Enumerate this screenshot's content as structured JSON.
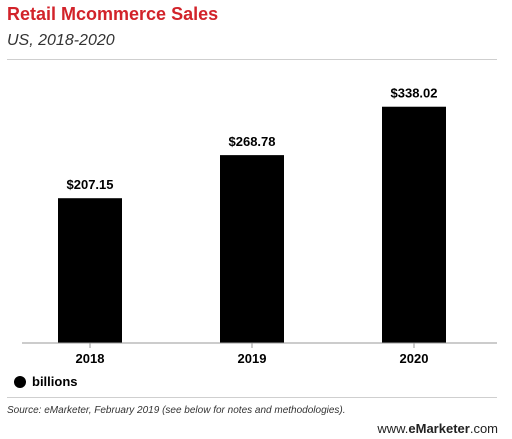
{
  "header": {
    "title": "Retail Mcommerce Sales",
    "subtitle": "US, 2018-2020"
  },
  "legend": {
    "label": "billions"
  },
  "source": "Source: eMarketer, February 2019 (see below for notes and methodologies).",
  "footer": {
    "prefix": "www.",
    "brand": "eMarketer",
    "suffix": ".com"
  },
  "colors": {
    "title": "#d2232a",
    "bar": "#000000",
    "axis": "#9a9a9a"
  },
  "chart_data": {
    "type": "bar",
    "title": "Retail Mcommerce Sales",
    "subtitle": "US, 2018-2020",
    "categories": [
      "2018",
      "2019",
      "2020"
    ],
    "values": [
      207.15,
      268.78,
      338.02
    ],
    "data_labels": [
      "$207.15",
      "$268.78",
      "$338.02"
    ],
    "unit": "billions",
    "ylim": [
      0,
      400
    ],
    "grid": false,
    "legend_placement": "bottom-left"
  }
}
